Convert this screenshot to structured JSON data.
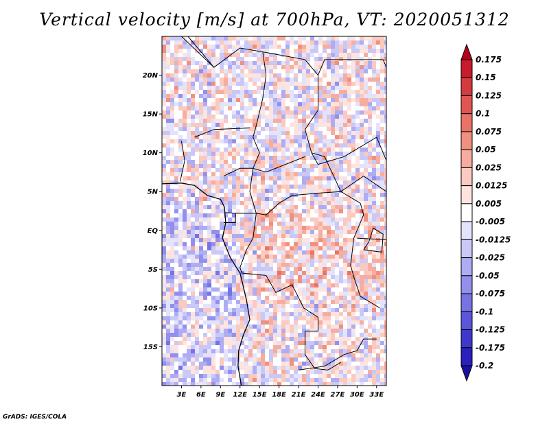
{
  "title": "Vertical velocity [m/s] at 700hPa, VT: 2020051312",
  "credit": "GrADS: IGES/COLA",
  "chart_data": {
    "type": "heatmap",
    "variable": "Vertical velocity",
    "units": "m/s",
    "level": "700hPa",
    "valid_time": "2020051312",
    "x_tick_labels": [
      "3E",
      "6E",
      "9E",
      "12E",
      "15E",
      "18E",
      "21E",
      "24E",
      "27E",
      "30E",
      "33E"
    ],
    "x_tick_values": [
      3,
      6,
      9,
      12,
      15,
      18,
      21,
      24,
      27,
      30,
      33
    ],
    "y_tick_labels": [
      "20N",
      "15N",
      "10N",
      "5N",
      "EQ",
      "5S",
      "10S",
      "15S"
    ],
    "y_tick_values": [
      20,
      15,
      10,
      5,
      0,
      -5,
      -10,
      -15
    ],
    "lon_range": [
      0,
      34.5
    ],
    "lat_range": [
      -20,
      25
    ],
    "colorbar_labels": [
      "0.175",
      "0.15",
      "0.125",
      "0.1",
      "0.075",
      "0.05",
      "0.025",
      "0.0125",
      "0.005",
      "-0.005",
      "-0.0125",
      "-0.025",
      "-0.05",
      "-0.075",
      "-0.1",
      "-0.125",
      "-0.175",
      "-0.2"
    ],
    "colorbar_colors": [
      "#b5001c",
      "#c81b2c",
      "#d43a3e",
      "#e05552",
      "#e97367",
      "#f0907f",
      "#f6ada0",
      "#fac9c0",
      "#fde4df",
      "#ffffff",
      "#e3e3fb",
      "#c9c8f7",
      "#aeacf2",
      "#9290ec",
      "#7673e3",
      "#5a56d9",
      "#3e38cc",
      "#2a20bc",
      "#1a0f9e"
    ]
  }
}
